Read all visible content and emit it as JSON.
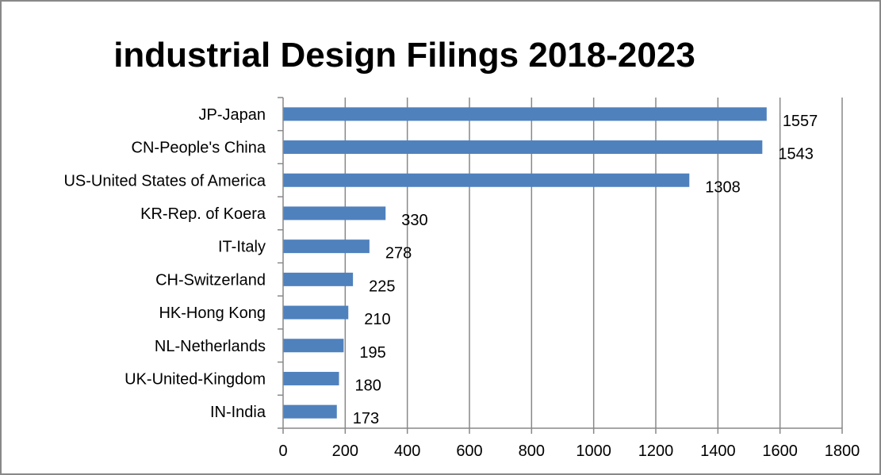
{
  "chart_data": {
    "type": "bar",
    "orientation": "horizontal",
    "title": "industrial Design Filings 2018-2023",
    "xlabel": "",
    "ylabel": "",
    "categories": [
      "JP-Japan",
      "CN-People's China",
      "US-United States of America",
      "KR-Rep. of Koera",
      "IT-Italy",
      "CH-Switzerland",
      "HK-Hong Kong",
      "NL-Netherlands",
      "UK-United-Kingdom",
      "IN-India"
    ],
    "values": [
      1557,
      1543,
      1308,
      330,
      278,
      225,
      210,
      195,
      180,
      173
    ],
    "data_labels": [
      "1557",
      "1543",
      "1308",
      "330",
      "278",
      "225",
      "210",
      "195",
      "180",
      "173"
    ],
    "xlim": [
      0,
      1800
    ],
    "xticks": [
      0,
      200,
      400,
      600,
      800,
      1000,
      1200,
      1400,
      1600,
      1800
    ],
    "xtick_labels": [
      "0",
      "200",
      "400",
      "600",
      "800",
      "1000",
      "1200",
      "1400",
      "1600",
      "1800"
    ],
    "grid": "vertical-major",
    "legend": "none",
    "colors": {
      "bar": "#4F81BD",
      "grid": "#888888",
      "axis": "#888888",
      "frame": "#888888"
    }
  }
}
